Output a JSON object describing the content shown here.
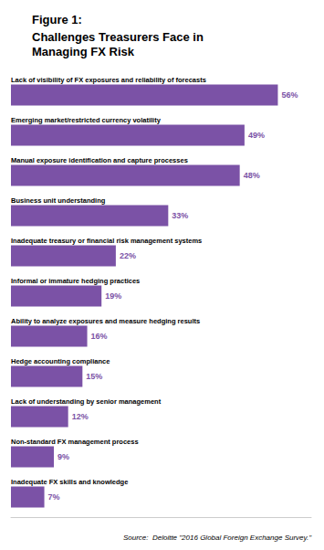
{
  "chart_data": {
    "type": "bar",
    "orientation": "horizontal",
    "title": "Figure 1:",
    "subtitle": "Challenges Treasurers Face in\nManaging FX Risk",
    "annotations": [
      "Source:  Deloitte \"2016 Global Foreign Exchange Survey.\""
    ],
    "categories": [
      "Lack of visibility of FX exposures and reliability of forecasts",
      "Emerging market/restricted currency volatility",
      "Manual exposure identification and capture processes",
      "Business unit understanding",
      "Inadequate treasury or financial risk management systems",
      "Informal or immature hedging practices",
      "Ability to analyze exposures and measure hedging results",
      "Hedge accounting compliance",
      "Lack of understanding by senior management",
      "Non-standard FX management process",
      "Inadequate FX skills and knowledge"
    ],
    "values": [
      56,
      49,
      48,
      33,
      22,
      19,
      16,
      15,
      12,
      9,
      7
    ],
    "value_labels": [
      "56%",
      "49%",
      "48%",
      "33%",
      "22%",
      "19%",
      "16%",
      "15%",
      "12%",
      "9%",
      "7%"
    ],
    "data_labels": true,
    "color": "#7B52A6",
    "xlim": [
      0,
      63
    ],
    "tick_labels": false,
    "grid": false
  }
}
